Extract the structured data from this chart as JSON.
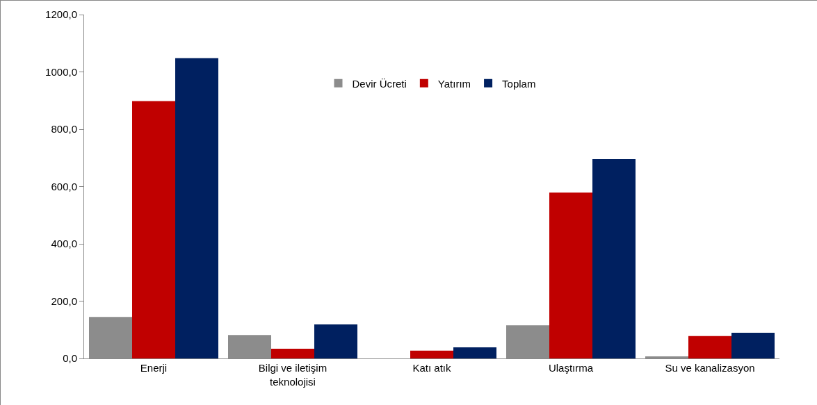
{
  "chart_data": {
    "type": "bar",
    "categories": [
      "Enerji",
      "Bilgi ve iletişim teknolojisi",
      "Katı atık",
      "Ulaştırma",
      "Su ve kanalizasyon"
    ],
    "series": [
      {
        "name": "Devir Ücreti",
        "color": "#8c8c8c",
        "values": [
          145,
          82,
          0,
          116,
          7
        ]
      },
      {
        "name": "Yatırım",
        "color": "#c00000",
        "values": [
          898,
          34,
          27,
          579,
          78
        ]
      },
      {
        "name": "Toplam",
        "color": "#002060",
        "values": [
          1048,
          119,
          39,
          696,
          90
        ]
      }
    ],
    "ylim": [
      0,
      1200
    ],
    "yticks": [
      {
        "value": 0,
        "label": "0,0"
      },
      {
        "value": 200,
        "label": "200,0"
      },
      {
        "value": 400,
        "label": "400,0"
      },
      {
        "value": 600,
        "label": "600,0"
      },
      {
        "value": 800,
        "label": "800,0"
      },
      {
        "value": 1000,
        "label": "1000,0"
      },
      {
        "value": 1200,
        "label": "1200,0"
      }
    ],
    "grid": false,
    "legend": "top"
  }
}
